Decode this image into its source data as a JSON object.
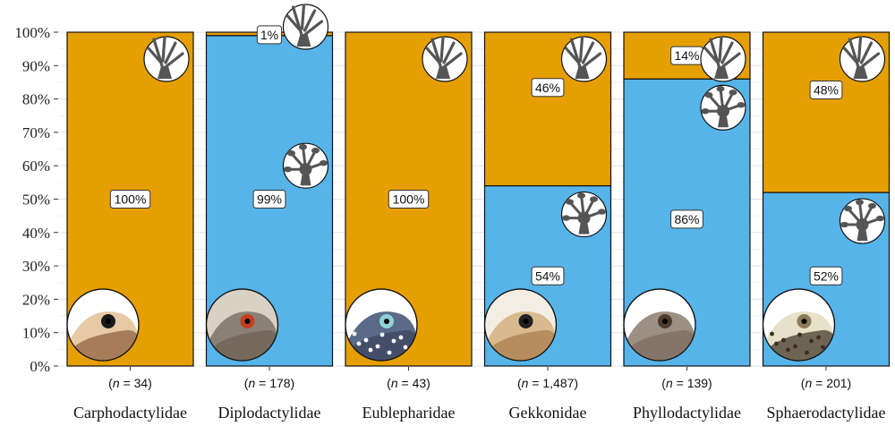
{
  "chart_data": {
    "type": "bar",
    "stacked": true,
    "ylim": [
      0,
      100
    ],
    "yticks": [
      "0%",
      "10%",
      "20%",
      "30%",
      "40%",
      "50%",
      "60%",
      "70%",
      "80%",
      "90%",
      "100%"
    ],
    "grid": true,
    "categories": [
      "Carphodactylidae",
      "Diplodactylidae",
      "Eublepharidae",
      "Gekkonidae",
      "Phyllodactylidae",
      "Sphaerodactylidae"
    ],
    "sample_sizes": [
      "(n = 34)",
      "(n = 178)",
      "(n = 43)",
      "(n = 1,487)",
      "(n = 139)",
      "(n = 201)"
    ],
    "series": [
      {
        "values": [
          0,
          99,
          0,
          54,
          86,
          52
        ],
        "labels": [
          "",
          "99%",
          "",
          "54%",
          "86%",
          "52%"
        ],
        "color": "#56b4e9",
        "icon": "padded-toe-foot-icon"
      },
      {
        "values": [
          100,
          1,
          100,
          46,
          14,
          48
        ],
        "labels": [
          "100%",
          "1%",
          "100%",
          "46%",
          "14%",
          "48%"
        ],
        "color": "#e69f00",
        "icon": "padless-foot-icon"
      }
    ],
    "bar_outline_color": "#111111",
    "gecko_photo_icons": [
      "gecko-head-photo-icon"
    ]
  }
}
